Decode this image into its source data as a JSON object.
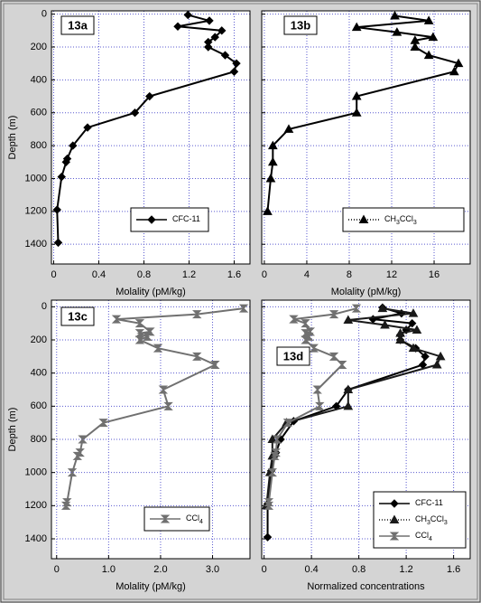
{
  "chart_data": [
    {
      "type": "line",
      "title": "13a",
      "xlabel": "Molality   (pM/kg)",
      "ylabel": "Depth  (m)",
      "xlim": [
        -0.02,
        1.74
      ],
      "ylim": [
        -20,
        1520
      ],
      "y_inverted": true,
      "xticks": [
        0,
        0.4,
        0.8,
        1.2,
        1.6
      ],
      "yticks": [
        0,
        200,
        400,
        600,
        800,
        1000,
        1200,
        1400
      ],
      "ytick_labels": true,
      "grid": true,
      "legend": "lower right",
      "series": [
        {
          "name": "CFC-11",
          "color": "#000000",
          "marker": "diamond",
          "legend_line": "solid",
          "x": [
            1.19,
            1.38,
            1.1,
            1.49,
            1.43,
            1.37,
            1.37,
            1.52,
            1.62,
            1.6,
            0.85,
            0.72,
            0.3,
            0.17,
            0.12,
            0.11,
            0.07,
            0.03,
            0.04
          ],
          "y": [
            5,
            40,
            75,
            100,
            140,
            170,
            200,
            250,
            300,
            350,
            500,
            600,
            690,
            800,
            880,
            900,
            990,
            1190,
            1390
          ]
        }
      ]
    },
    {
      "type": "line",
      "title": "13b",
      "xlabel": "Molality   (pM/kg)",
      "xlim": [
        -0.25,
        19.4
      ],
      "ylim": [
        -20,
        1520
      ],
      "y_inverted": true,
      "xticks": [
        0,
        4,
        8,
        12,
        16
      ],
      "yticks": [
        0,
        200,
        400,
        600,
        800,
        1000,
        1200,
        1400
      ],
      "ytick_labels": false,
      "grid": true,
      "legend": "lower right",
      "series": [
        {
          "name": "CH3CCl3",
          "color": "#000000",
          "marker": "triangle",
          "legend_line": "dotted",
          "x": [
            12.3,
            15.5,
            8.7,
            12.5,
            15.9,
            14.2,
            14.2,
            15.5,
            18.3,
            17.9,
            8.7,
            8.7,
            2.3,
            0.8,
            0.8,
            0.6,
            0.3
          ],
          "y": [
            10,
            40,
            80,
            110,
            140,
            160,
            200,
            250,
            300,
            350,
            500,
            600,
            700,
            800,
            900,
            1000,
            1200
          ]
        }
      ]
    },
    {
      "type": "line",
      "title": "13c",
      "xlabel": "Molality   (pM/kg)",
      "ylabel": "Depth  (m)",
      "xlim": [
        -0.1,
        3.72
      ],
      "ylim": [
        -40,
        1520
      ],
      "y_inverted": true,
      "xticks": [
        0,
        {
          "value": 1,
          "label": "1.0"
        },
        {
          "value": 2,
          "label": "2.0"
        },
        {
          "value": 3,
          "label": "3.0"
        }
      ],
      "yticks": [
        0,
        200,
        400,
        600,
        800,
        1000,
        1200,
        1400
      ],
      "ytick_labels": true,
      "grid": true,
      "legend": "lower right",
      "series": [
        {
          "name": "CCl4",
          "color": "#707070",
          "marker": "bowtie",
          "legend_line": "solid",
          "x": [
            3.6,
            2.7,
            1.15,
            1.6,
            1.8,
            1.6,
            1.75,
            1.6,
            1.95,
            2.7,
            3.05,
            2.05,
            2.15,
            0.9,
            0.5,
            0.45,
            0.4,
            0.3,
            0.2,
            0.18
          ],
          "y": [
            10,
            45,
            75,
            100,
            150,
            160,
            180,
            200,
            250,
            300,
            350,
            500,
            600,
            700,
            800,
            880,
            900,
            1000,
            1180,
            1200
          ]
        }
      ]
    },
    {
      "type": "line",
      "title": "13d",
      "xlabel": "Normalized concentrations",
      "xlim": [
        -0.02,
        1.74
      ],
      "ylim": [
        -40,
        1520
      ],
      "y_inverted": true,
      "xticks": [
        0,
        0.4,
        0.8,
        1.2,
        1.6
      ],
      "yticks": [
        0,
        200,
        400,
        600,
        800,
        1000,
        1200,
        1400
      ],
      "ytick_labels": false,
      "grid": true,
      "legend": "lower right",
      "series": [
        {
          "name": "CFC-11",
          "color": "#000000",
          "marker": "diamond",
          "legend_line": "solid",
          "x": [
            1.0,
            1.16,
            0.92,
            1.25,
            1.2,
            1.15,
            1.15,
            1.28,
            1.36,
            1.34,
            0.71,
            0.61,
            0.25,
            0.14,
            0.1,
            0.09,
            0.06,
            0.03,
            0.03
          ],
          "y": [
            5,
            40,
            75,
            100,
            140,
            170,
            200,
            250,
            300,
            350,
            500,
            600,
            690,
            800,
            880,
            900,
            990,
            1190,
            1390
          ]
        },
        {
          "name": "CH3CCl3",
          "color": "#1a1a1a",
          "marker": "triangle",
          "legend_line": "dotted",
          "x": [
            1.0,
            1.26,
            0.71,
            1.02,
            1.29,
            1.15,
            1.15,
            1.26,
            1.49,
            1.46,
            0.71,
            0.71,
            0.19,
            0.07,
            0.07,
            0.05,
            0.02
          ],
          "y": [
            10,
            40,
            80,
            110,
            140,
            160,
            200,
            250,
            300,
            350,
            500,
            600,
            700,
            800,
            900,
            1000,
            1200
          ]
        },
        {
          "name": "CCl4",
          "color": "#707070",
          "marker": "bowtie",
          "legend_line": "solid",
          "x": [
            0.78,
            0.59,
            0.25,
            0.35,
            0.39,
            0.35,
            0.38,
            0.35,
            0.42,
            0.59,
            0.66,
            0.45,
            0.47,
            0.2,
            0.11,
            0.1,
            0.09,
            0.07,
            0.04,
            0.04
          ],
          "y": [
            10,
            45,
            75,
            100,
            150,
            160,
            180,
            200,
            250,
            300,
            350,
            500,
            600,
            700,
            800,
            880,
            900,
            1000,
            1180,
            1200
          ]
        }
      ]
    }
  ]
}
